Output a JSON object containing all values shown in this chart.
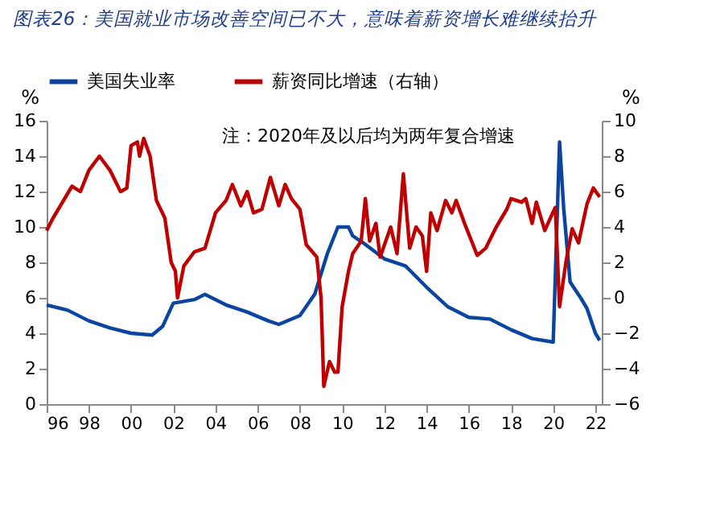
{
  "chart_data": {
    "type": "line",
    "title": "图表26：美国就业市场改善空间已不大，意味着薪资增长难继续抬升",
    "annotations": [
      "注：2020年及以后均为两年复合增速"
    ],
    "ylabel": "%",
    "y2label": "%",
    "xlim": [
      1996,
      2022.3
    ],
    "xticks": [
      {
        "value": 1996,
        "label": "96"
      },
      {
        "value": 1998,
        "label": "98"
      },
      {
        "value": 2000,
        "label": "00"
      },
      {
        "value": 2002,
        "label": "02"
      },
      {
        "value": 2004,
        "label": "04"
      },
      {
        "value": 2006,
        "label": "06"
      },
      {
        "value": 2008,
        "label": "08"
      },
      {
        "value": 2010,
        "label": "10"
      },
      {
        "value": 2012,
        "label": "12"
      },
      {
        "value": 2014,
        "label": "14"
      },
      {
        "value": 2016,
        "label": "16"
      },
      {
        "value": 2018,
        "label": "18"
      },
      {
        "value": 2020,
        "label": "20"
      },
      {
        "value": 2022,
        "label": "22"
      }
    ],
    "ylim": [
      0,
      16
    ],
    "yticks": [
      0,
      2,
      4,
      6,
      8,
      10,
      12,
      14,
      16
    ],
    "y2lim": [
      -6,
      10
    ],
    "y2ticks": [
      -6,
      -4,
      -2,
      0,
      2,
      4,
      6,
      8,
      10
    ],
    "legend": "top",
    "grid": false,
    "series": [
      {
        "name": "美国失业率",
        "color": "#0b45a0",
        "x": [
          1996,
          1997,
          1998,
          1999,
          2000,
          2001,
          2001.5,
          2002,
          2003,
          2003.5,
          2004.5,
          2005.5,
          2006.5,
          2007,
          2008,
          2008.7,
          2009.3,
          2009.8,
          2010.3,
          2010.5,
          2011,
          2012,
          2013,
          2014,
          2015,
          2016,
          2017,
          2018,
          2019,
          2020,
          2020.3,
          2020.5,
          2020.8,
          2021.3,
          2021.6,
          2022,
          2022.2
        ],
        "values": [
          5.6,
          5.3,
          4.7,
          4.3,
          4.0,
          3.9,
          4.4,
          5.7,
          5.9,
          6.2,
          5.6,
          5.2,
          4.7,
          4.5,
          5.0,
          6.2,
          8.5,
          10.0,
          10.0,
          9.5,
          9.1,
          8.2,
          7.8,
          6.6,
          5.5,
          4.9,
          4.8,
          4.2,
          3.7,
          3.5,
          14.8,
          11.0,
          6.9,
          6.0,
          5.4,
          4.0,
          3.6
        ]
      },
      {
        "name": "薪资同比增速（右轴）",
        "color": "#c00000",
        "axis": "y2",
        "x": [
          1996,
          1996.3,
          1996.8,
          1997.2,
          1997.6,
          1998,
          1998.5,
          1999,
          1999.5,
          1999.8,
          2000,
          2000.3,
          2000.4,
          2000.6,
          2000.9,
          2001.2,
          2001.6,
          2001.9,
          2002.1,
          2002.2,
          2002.5,
          2003,
          2003.5,
          2004,
          2004.5,
          2004.8,
          2005.2,
          2005.5,
          2005.8,
          2006.2,
          2006.6,
          2007,
          2007.3,
          2007.6,
          2008,
          2008.3,
          2008.8,
          2009,
          2009.13,
          2009.4,
          2009.65,
          2009.8,
          2010,
          2010.3,
          2010.5,
          2010.9,
          2011.1,
          2011.3,
          2011.6,
          2011.8,
          2012.3,
          2012.6,
          2012.9,
          2013.2,
          2013.5,
          2013.8,
          2014,
          2014.2,
          2014.5,
          2014.9,
          2015.2,
          2015.4,
          2015.8,
          2016.4,
          2016.8,
          2017.3,
          2017.8,
          2018,
          2018.5,
          2018.7,
          2019,
          2019.2,
          2019.6,
          2019.9,
          2020.1,
          2020.3,
          2020.6,
          2020.9,
          2021.2,
          2021.6,
          2021.9,
          2022.2
        ],
        "values": [
          3.8,
          4.5,
          5.5,
          6.3,
          6.0,
          7.2,
          8.0,
          7.2,
          6.0,
          6.2,
          8.6,
          8.8,
          8.0,
          9.0,
          8.0,
          5.5,
          4.5,
          2.0,
          1.5,
          0.0,
          1.8,
          2.6,
          2.8,
          4.8,
          5.5,
          6.4,
          5.2,
          6.0,
          4.8,
          5.0,
          6.8,
          5.2,
          6.4,
          5.6,
          5.0,
          3.0,
          2.3,
          0.0,
          -5.0,
          -3.6,
          -4.2,
          -4.2,
          -0.5,
          1.5,
          2.5,
          3.2,
          5.6,
          3.2,
          4.2,
          2.3,
          4.0,
          2.5,
          7.0,
          2.8,
          4.0,
          3.5,
          1.5,
          4.8,
          3.8,
          5.5,
          4.8,
          5.5,
          4.2,
          2.4,
          2.8,
          4.0,
          5.0,
          5.6,
          5.4,
          5.6,
          4.2,
          5.4,
          3.8,
          4.6,
          5.1,
          -0.5,
          2.0,
          3.9,
          3.1,
          5.3,
          6.2,
          5.7
        ]
      }
    ]
  }
}
